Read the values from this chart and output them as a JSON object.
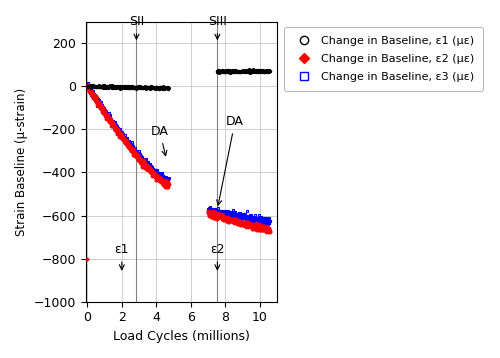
{
  "xlabel": "Load Cycles (millions)",
  "ylabel": "Strain Baseline (µ-strain)",
  "xlim": [
    -0.1,
    11
  ],
  "ylim": [
    -1000,
    300
  ],
  "yticks": [
    -1000,
    -800,
    -600,
    -400,
    -200,
    0,
    200
  ],
  "xticks": [
    0,
    2,
    4,
    6,
    8,
    10
  ],
  "legend_labels": [
    "Change in Baseline, ε1 (µε)",
    "Change in Baseline, ε2 (µε)",
    "Change in Baseline, ε3 (µε)"
  ],
  "SII_x": 2.85,
  "SIII_x": 7.55,
  "DA1_x": 4.7,
  "DA2_x": 7.55,
  "eps1_x": 2.0,
  "eps2_x": 7.55,
  "grid_color": "#bbbbbb",
  "background_color": "#ffffff"
}
